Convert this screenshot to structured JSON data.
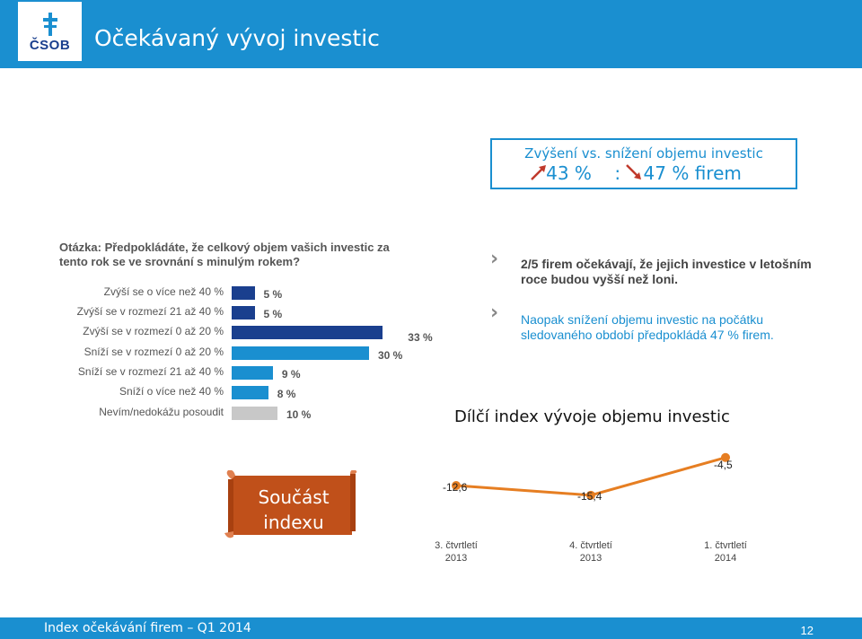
{
  "header": {
    "logo_text": "ČSOB",
    "title": "Očekávaný vývoj investic"
  },
  "summary": {
    "line1": "Zvýšení vs. snížení objemu investic",
    "line2": "43 %    :    47 % firem",
    "up_color": "#c0392b",
    "down_color": "#c0392b"
  },
  "question": "Otázka: Předpokládáte, že celkový objem vašich investic za tento rok se ve srovnání s minulým rokem?",
  "bars": [
    {
      "label": "Zvýší se o více než 40 %",
      "value": 5,
      "value_text": "5 %",
      "color": "#1a3f8e"
    },
    {
      "label": "Zvýší se v rozmezí 21 až 40 %",
      "value": 5,
      "value_text": "5 %",
      "color": "#1a3f8e"
    },
    {
      "label": "Zvýší se v rozmezí 0 až 20 %",
      "value": 33,
      "value_text": "33 %",
      "color": "#1a3f8e"
    },
    {
      "label": "Sníží se v rozmezí 0 až 20 %",
      "value": 30,
      "value_text": "30 %",
      "color": "#1a8fd0"
    },
    {
      "label": "Sníží se v rozmezí 21 až 40 %",
      "value": 9,
      "value_text": "9 %",
      "color": "#1a8fd0"
    },
    {
      "label": "Sníží o více než 40 %",
      "value": 8,
      "value_text": "8 %",
      "color": "#1a8fd0"
    },
    {
      "label": "Nevím/nedokážu posoudit",
      "value": 10,
      "value_text": "10 %",
      "color": "#c8c8c8"
    }
  ],
  "notes": {
    "note1": "2/5 firem očekávají, že jejich investice v letošním roce budou vyšší než loni.",
    "note2": "Naopak snížení objemu investic na počátku sledovaného období předpokládá 47 % firem."
  },
  "index": {
    "title": "Dílčí index vývoje objemu investic",
    "badge_line1": "Součást",
    "badge_line2": "indexu",
    "badge_color": "#c0501a"
  },
  "chart_data": {
    "type": "line",
    "title": "Dílčí index vývoje objemu investic",
    "categories": [
      "3. čtvrtletí 2013",
      "4. čtvrtletí 2013",
      "1. čtvrtletí 2014"
    ],
    "values": [
      -12.6,
      -15.4,
      -4.5
    ],
    "value_labels": [
      "-12,6",
      "-15,4",
      "-4,5"
    ],
    "x_labels_line1": [
      "3. čtvrtletí",
      "4. čtvrtletí",
      "1. čtvrtletí"
    ],
    "x_labels_line2": [
      "2013",
      "2013",
      "2014"
    ],
    "ylim": [
      -17,
      -3
    ],
    "color": "#e67e22",
    "grid": false
  },
  "footer": {
    "text": "Index očekávání firem  –  Q1 2014",
    "page": "12"
  }
}
